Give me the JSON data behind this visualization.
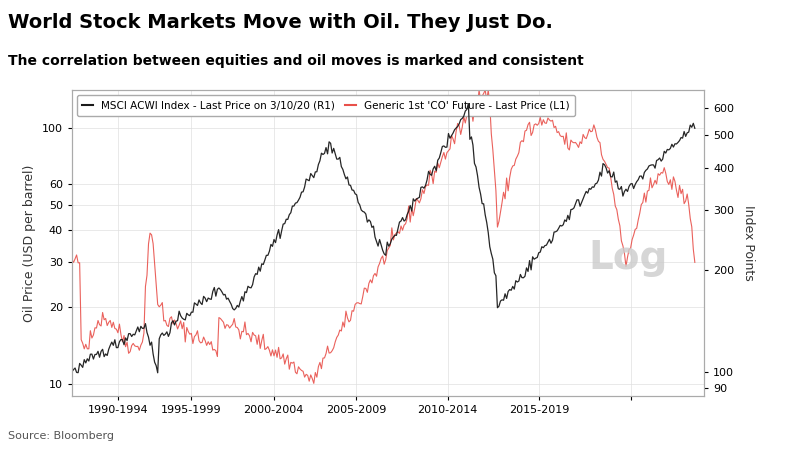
{
  "title": "World Stock Markets Move with Oil. They Just Do.",
  "subtitle": "The correlation between equities and oil moves is marked and consistent",
  "source": "Source: Bloomberg",
  "legend_labels": [
    "MSCI ACWI Index - Last Price on 3/10/20 (R1)",
    "Generic 1st 'CO' Future - Last Price (L1)"
  ],
  "legend_colors": [
    "#1a1a1a",
    "#e8504a"
  ],
  "left_ylabel": "Oil Price (USD per barrel)",
  "right_ylabel": "Index Points",
  "right_watermark": "Log",
  "xtick_positions": [
    1988.5,
    1992.5,
    1997.0,
    2001.5,
    2006.5,
    2011.5,
    2016.5
  ],
  "xtick_labels": [
    "1990-1994",
    "1995-1999",
    "2000-2004",
    "2005-2009",
    "2010-2014",
    "2015-2019",
    ""
  ],
  "left_yticks": [
    10,
    20,
    30,
    40,
    50,
    60,
    100
  ],
  "right_yticks": [
    90,
    100,
    200,
    300,
    400,
    500,
    600
  ],
  "left_ylim": [
    9,
    140
  ],
  "right_ylim": [
    85,
    680
  ],
  "xlim": [
    1986,
    2020.5
  ],
  "background": "#ffffff",
  "grid_color": "#e0e0e0",
  "title_color": "#000000",
  "subtitle_color": "#000000",
  "source_color": "#555555"
}
